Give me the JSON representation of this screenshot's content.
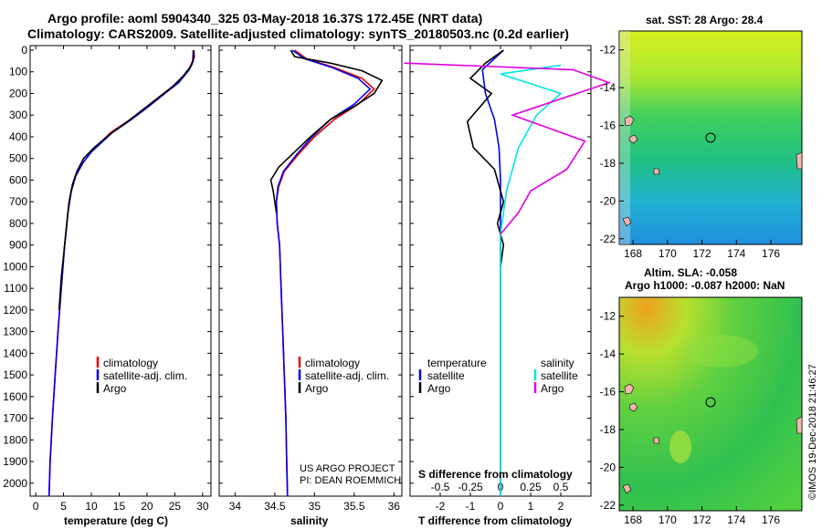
{
  "header": {
    "line1": "Argo profile: aoml 5904340_325 03-May-2018 16.37S 172.45E (NRT data)",
    "line2": "Climatology: CARS2009. Satellite-adjusted climatology: synTS_20180503.nc (0.2d earlier)"
  },
  "depth_axis": {
    "ticks": [
      "0",
      "100",
      "200",
      "300",
      "400",
      "500",
      "600",
      "700",
      "800",
      "900",
      "1000",
      "1100",
      "1200",
      "1300",
      "1400",
      "1500",
      "1600",
      "1700",
      "1800",
      "1900",
      "2000"
    ],
    "range": [
      0,
      2060
    ]
  },
  "colors": {
    "climatology": "#e00000",
    "satellite": "#0000ee",
    "argo": "#000000",
    "sat_salinity": "#00e5e5",
    "argo_salinity": "#e000e0"
  },
  "panels": {
    "temperature": {
      "xlabel": "temperature (deg C)",
      "xticks": [
        "0",
        "5",
        "10",
        "15",
        "20",
        "25",
        "30"
      ],
      "legend": [
        "climatology",
        "satellite-adj. clim.",
        "Argo"
      ]
    },
    "salinity": {
      "xlabel": "salinity",
      "xticks": [
        "34",
        "34.5",
        "35",
        "35.5",
        "36"
      ],
      "legend": [
        "climatology",
        "satellite-adj. clim.",
        "Argo"
      ],
      "note1": "US ARGO PROJECT",
      "note2": "PI: DEAN ROEMMICH"
    },
    "difference": {
      "xlabel": "T difference from climatology",
      "xticks": [
        "-2",
        "-1",
        "0",
        "1",
        "2"
      ],
      "s_label": "S difference from climatology",
      "s_ticks": [
        "-0.5",
        "-0.25",
        "0",
        "0.25",
        "0.5"
      ],
      "legend_left_title": "temperature",
      "legend_left": [
        "satellite",
        "Argo"
      ],
      "legend_right_title": "salinity",
      "legend_right": [
        "satellite",
        "Argo"
      ]
    }
  },
  "maps": {
    "sst_title": "sat. SST: 28 Argo: 28.4",
    "sla_title1": "Altim. SLA: -0.058",
    "sla_title2": "Argo h1000: -0.087 h2000: NaN",
    "lat_ticks": [
      "-12",
      "-14",
      "-16",
      "-18",
      "-20",
      "-22"
    ],
    "lon_ticks": [
      "168",
      "170",
      "172",
      "174",
      "176"
    ],
    "credit": "©IMOS 19-Dec-2018 21:46:27"
  },
  "chart_data": [
    {
      "type": "line",
      "title": "",
      "xlabel": "temperature (deg C)",
      "ylabel": "",
      "xlim": [
        -1,
        31.5
      ],
      "ylim": [
        2060,
        0
      ],
      "series": [
        {
          "name": "climatology",
          "points": [
            [
              28.3,
              0
            ],
            [
              28.2,
              50
            ],
            [
              27.5,
              90
            ],
            [
              25.5,
              150
            ],
            [
              23,
              200
            ],
            [
              20,
              260
            ],
            [
              17,
              320
            ],
            [
              13.5,
              380
            ],
            [
              11.5,
              430
            ],
            [
              10,
              470
            ],
            [
              8.5,
              520
            ],
            [
              7.2,
              580
            ],
            [
              6.4,
              650
            ],
            [
              5.8,
              750
            ],
            [
              5.2,
              900
            ],
            [
              4.6,
              1100
            ],
            [
              4.0,
              1300
            ],
            [
              3.5,
              1500
            ],
            [
              3.0,
              1700
            ],
            [
              2.6,
              1900
            ],
            [
              2.4,
              2060
            ]
          ]
        },
        {
          "name": "satellite-adj. clim.",
          "points": [
            [
              28.4,
              0
            ],
            [
              28.3,
              50
            ],
            [
              27.6,
              90
            ],
            [
              25.7,
              150
            ],
            [
              23.2,
              200
            ],
            [
              20.3,
              260
            ],
            [
              17.2,
              320
            ],
            [
              13.8,
              380
            ],
            [
              11.7,
              430
            ],
            [
              10,
              470
            ],
            [
              8.5,
              520
            ],
            [
              7.2,
              580
            ],
            [
              6.4,
              650
            ],
            [
              5.8,
              750
            ],
            [
              5.2,
              900
            ],
            [
              4.6,
              1100
            ],
            [
              4.0,
              1300
            ],
            [
              3.5,
              1500
            ],
            [
              3.0,
              1700
            ],
            [
              2.6,
              1900
            ],
            [
              2.4,
              2060
            ]
          ]
        },
        {
          "name": "Argo",
          "points": [
            [
              28.4,
              0
            ],
            [
              28.5,
              30
            ],
            [
              28.0,
              70
            ],
            [
              26.5,
              120
            ],
            [
              24.5,
              170
            ],
            [
              22,
              220
            ],
            [
              19,
              280
            ],
            [
              16.5,
              330
            ],
            [
              13.5,
              385
            ],
            [
              10.5,
              450
            ],
            [
              8.6,
              500
            ],
            [
              7.4,
              560
            ],
            [
              6.6,
              620
            ],
            [
              6.0,
              700
            ],
            [
              5.6,
              800
            ],
            [
              5.2,
              900
            ],
            [
              4.6,
              1050
            ],
            [
              4.2,
              1200
            ]
          ]
        }
      ]
    },
    {
      "type": "line",
      "title": "",
      "xlabel": "salinity",
      "ylabel": "",
      "xlim": [
        33.8,
        36.1
      ],
      "ylim": [
        2060,
        0
      ],
      "series": [
        {
          "name": "climatology",
          "points": [
            [
              34.75,
              0
            ],
            [
              34.9,
              40
            ],
            [
              35.25,
              80
            ],
            [
              35.6,
              130
            ],
            [
              35.75,
              180
            ],
            [
              35.55,
              250
            ],
            [
              35.25,
              320
            ],
            [
              35.0,
              400
            ],
            [
              34.8,
              480
            ],
            [
              34.62,
              560
            ],
            [
              34.55,
              630
            ],
            [
              34.52,
              700
            ],
            [
              34.53,
              800
            ],
            [
              34.56,
              900
            ],
            [
              34.58,
              1100
            ],
            [
              34.6,
              1300
            ],
            [
              34.62,
              1500
            ],
            [
              34.64,
              1700
            ],
            [
              34.65,
              1900
            ],
            [
              34.66,
              2060
            ]
          ]
        },
        {
          "name": "satellite-adj. clim.",
          "points": [
            [
              34.72,
              0
            ],
            [
              34.88,
              40
            ],
            [
              35.22,
              80
            ],
            [
              35.55,
              130
            ],
            [
              35.7,
              180
            ],
            [
              35.5,
              250
            ],
            [
              35.2,
              320
            ],
            [
              34.97,
              400
            ],
            [
              34.78,
              480
            ],
            [
              34.61,
              560
            ],
            [
              34.54,
              630
            ],
            [
              34.52,
              700
            ],
            [
              34.53,
              800
            ],
            [
              34.56,
              900
            ],
            [
              34.58,
              1100
            ],
            [
              34.6,
              1300
            ],
            [
              34.62,
              1500
            ],
            [
              34.64,
              1700
            ],
            [
              34.65,
              1900
            ],
            [
              34.66,
              2060
            ]
          ]
        },
        {
          "name": "Argo",
          "points": [
            [
              34.7,
              0
            ],
            [
              34.75,
              30
            ],
            [
              35.2,
              60
            ],
            [
              35.6,
              95
            ],
            [
              35.85,
              140
            ],
            [
              35.75,
              200
            ],
            [
              35.5,
              260
            ],
            [
              35.2,
              320
            ],
            [
              34.95,
              400
            ],
            [
              34.75,
              470
            ],
            [
              34.55,
              540
            ],
            [
              34.45,
              600
            ],
            [
              34.48,
              650
            ],
            [
              34.5,
              700
            ],
            [
              34.52,
              750
            ]
          ]
        }
      ]
    },
    {
      "type": "line",
      "title": "",
      "xlabel": "T difference from climatology",
      "ylabel": "",
      "xlim": [
        -3,
        3
      ],
      "ylim": [
        2060,
        0
      ],
      "series": [
        {
          "name": "satellite",
          "points": [
            [
              0.1,
              0
            ],
            [
              -0.6,
              90
            ],
            [
              -0.5,
              200
            ],
            [
              -0.2,
              320
            ],
            [
              -0.05,
              450
            ],
            [
              0,
              600
            ],
            [
              0,
              800
            ],
            [
              0,
              2060
            ]
          ]
        },
        {
          "name": "Argo",
          "points": [
            [
              0.1,
              0
            ],
            [
              -0.5,
              60
            ],
            [
              -1.0,
              130
            ],
            [
              -0.3,
              200
            ],
            [
              -1.1,
              330
            ],
            [
              -0.9,
              450
            ],
            [
              -0.2,
              550
            ],
            [
              0.1,
              700
            ],
            [
              -0.1,
              800
            ],
            [
              0.1,
              900
            ],
            [
              0,
              1000
            ]
          ]
        },
        {
          "name": "satellite",
          "points": [
            [
              0.5,
              70
            ],
            [
              0,
              110
            ],
            [
              0.5,
              200
            ],
            [
              0.3,
              300
            ],
            [
              0.15,
              450
            ],
            [
              0.05,
              650
            ],
            [
              0,
              850
            ],
            [
              0,
              2060
            ]
          ]
        },
        {
          "name": "Argo",
          "points": [
            [
              -0.8,
              60
            ],
            [
              0.6,
              90
            ],
            [
              0.9,
              150
            ],
            [
              0.1,
              300
            ],
            [
              0.7,
              420
            ],
            [
              0.55,
              550
            ],
            [
              0.25,
              650
            ],
            [
              0.15,
              750
            ],
            [
              0,
              850
            ]
          ]
        }
      ]
    }
  ]
}
